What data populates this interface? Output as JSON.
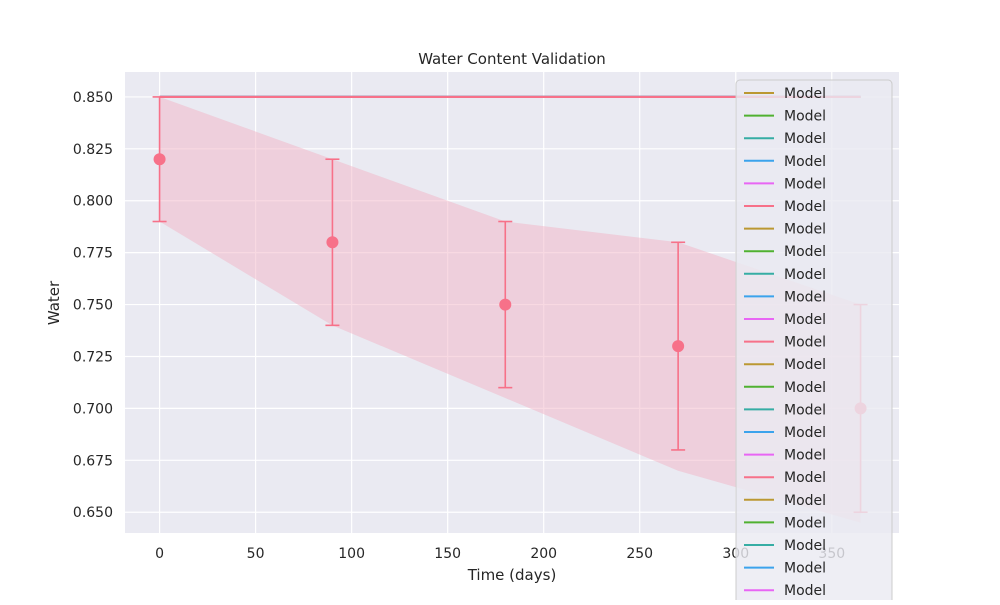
{
  "chart_data": {
    "type": "line",
    "title": "Water Content Validation",
    "xlabel": "Time (days)",
    "ylabel": "Water",
    "xlim": [
      -18,
      385
    ],
    "ylim": [
      0.64,
      0.862
    ],
    "x_ticks": [
      0,
      50,
      100,
      150,
      200,
      250,
      300,
      350
    ],
    "y_ticks": [
      0.65,
      0.675,
      0.7,
      0.725,
      0.75,
      0.775,
      0.8,
      0.825,
      0.85
    ],
    "y_tick_labels": [
      "0.650",
      "0.675",
      "0.700",
      "0.725",
      "0.750",
      "0.775",
      "0.800",
      "0.825",
      "0.850"
    ],
    "grid": true,
    "style": "seaborn-darkgrid",
    "colors": {
      "plot_background": "#eaeaf2",
      "grid": "#ffffff",
      "observed": "#f77189",
      "band": "#f2b3c6"
    },
    "model_line": {
      "x": [
        0,
        365
      ],
      "y": [
        0.85,
        0.85
      ],
      "colors": [
        "#bb9832",
        "#50b131",
        "#36ada4",
        "#3ba3ec",
        "#e866f4",
        "#f77189"
      ]
    },
    "observed": {
      "x": [
        0,
        90,
        180,
        270,
        365
      ],
      "y": [
        0.82,
        0.78,
        0.75,
        0.73,
        0.7
      ],
      "y_lower": [
        0.79,
        0.74,
        0.71,
        0.68,
        0.65
      ],
      "y_upper": [
        0.85,
        0.82,
        0.79,
        0.78,
        0.75
      ]
    },
    "uncertainty_band": {
      "x": [
        0,
        90,
        180,
        270,
        365
      ],
      "lower": [
        0.79,
        0.74,
        0.705,
        0.67,
        0.645
      ],
      "upper": [
        0.85,
        0.82,
        0.79,
        0.78,
        0.75
      ]
    },
    "legend": {
      "position": "right",
      "entries": [
        {
          "label": "Model",
          "color": "#bb9832"
        },
        {
          "label": "Model",
          "color": "#50b131"
        },
        {
          "label": "Model",
          "color": "#36ada4"
        },
        {
          "label": "Model",
          "color": "#3ba3ec"
        },
        {
          "label": "Model",
          "color": "#e866f4"
        },
        {
          "label": "Model",
          "color": "#f77189"
        },
        {
          "label": "Model",
          "color": "#bb9832"
        },
        {
          "label": "Model",
          "color": "#50b131"
        },
        {
          "label": "Model",
          "color": "#36ada4"
        },
        {
          "label": "Model",
          "color": "#3ba3ec"
        },
        {
          "label": "Model",
          "color": "#e866f4"
        },
        {
          "label": "Model",
          "color": "#f77189"
        },
        {
          "label": "Model",
          "color": "#bb9832"
        },
        {
          "label": "Model",
          "color": "#50b131"
        },
        {
          "label": "Model",
          "color": "#36ada4"
        },
        {
          "label": "Model",
          "color": "#3ba3ec"
        },
        {
          "label": "Model",
          "color": "#e866f4"
        },
        {
          "label": "Model",
          "color": "#f77189"
        },
        {
          "label": "Model",
          "color": "#bb9832"
        },
        {
          "label": "Model",
          "color": "#50b131"
        },
        {
          "label": "Model",
          "color": "#36ada4"
        },
        {
          "label": "Model",
          "color": "#3ba3ec"
        },
        {
          "label": "Model",
          "color": "#e866f4"
        }
      ]
    }
  }
}
